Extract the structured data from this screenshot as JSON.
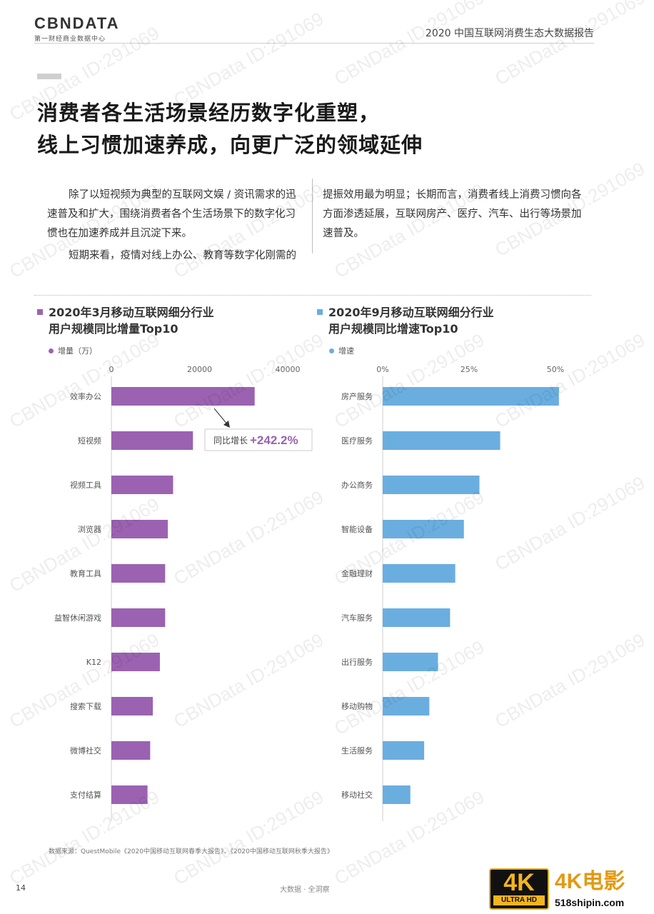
{
  "header": {
    "logo_text": "CBNDATA",
    "logo_subtitle": "第一财经商业数据中心",
    "report_title": "2020 中国互联网消费生态大数据报告"
  },
  "headline": {
    "line1": "消费者各生活场景经历数字化重塑，",
    "line2": "线上习惯加速养成，向更广泛的领域延伸"
  },
  "body": {
    "left_para1": "除了以短视频为典型的互联网文娱 / 资讯需求的迅速普及和扩大，围绕消费者各个生活场景下的数字化习惯也在加速养成并且沉淀下来。",
    "left_para2": "短期来看，疫情对线上办公、教育等数字化刚需的",
    "right_para1": "提振效用最为明显；长期而言，消费者线上消费习惯向各方面渗透延展，互联网房产、医疗、汽车、出行等场景加速普及。"
  },
  "colors": {
    "left_bar": "#9b62b1",
    "right_bar": "#6aaee0",
    "annotation_accent": "#9b62b1"
  },
  "chart_data": [
    {
      "type": "bar",
      "orientation": "horizontal",
      "title_line1": "2020年3月移动互联网细分行业",
      "title_line2": "用户规模同比增量Top10",
      "legend": "增量（万）",
      "ticks": [
        "0",
        "20000",
        "40000"
      ],
      "xlim": [
        0,
        40000
      ],
      "categories": [
        "效率办公",
        "短视频",
        "视频工具",
        "浏览器",
        "教育工具",
        "益智休闲游戏",
        "K12",
        "搜索下载",
        "微博社交",
        "支付结算"
      ],
      "values": [
        32500,
        18500,
        14000,
        12800,
        12200,
        12200,
        11000,
        9400,
        8800,
        8200
      ],
      "annotation": {
        "target": "效率办公",
        "label": "同比增长",
        "value": "+242.2%"
      }
    },
    {
      "type": "bar",
      "orientation": "horizontal",
      "title_line1": "2020年9月移动互联网细分行业",
      "title_line2": "用户规模同比增速Top10",
      "legend": "增速",
      "ticks": [
        "0%",
        "25%",
        "50%"
      ],
      "xlim": [
        0,
        50
      ],
      "categories": [
        "房产服务",
        "医疗服务",
        "办公商务",
        "智能设备",
        "金融理财",
        "汽车服务",
        "出行服务",
        "移动购物",
        "生活服务",
        "移动社交"
      ],
      "values": [
        51,
        34,
        28,
        23.5,
        21,
        19.5,
        16,
        13.5,
        12,
        8
      ]
    }
  ],
  "footer": {
    "source": "数据来源：QuestMobile《2020中国移动互联网春季大报告》、《2020中国移动互联网秋季大报告》",
    "page_number": "14",
    "center_text": "大数据 · 全洞察"
  },
  "watermark_text": "CBNData ID:291069",
  "badge": {
    "big": "4K",
    "small": "ULTRA HD",
    "brand": "4K电影",
    "url": "518shipin.com"
  }
}
